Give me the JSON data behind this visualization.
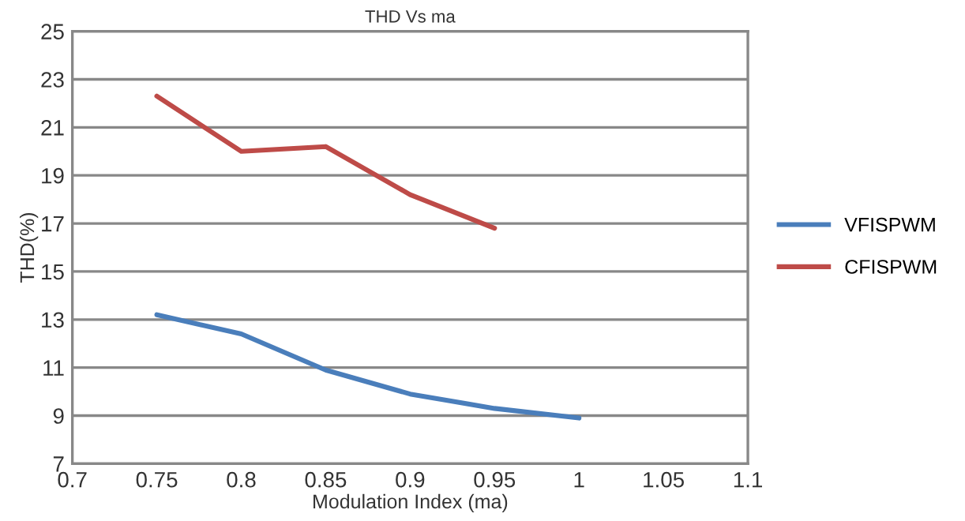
{
  "chart_data": {
    "type": "line",
    "title": "THD Vs ma",
    "xlabel": "Modulation Index (ma)",
    "ylabel": "THD(%)",
    "x": [
      0.75,
      0.8,
      0.85,
      0.9,
      0.95,
      1.0
    ],
    "series": [
      {
        "name": "VFISPWM",
        "color": "#4a7ebb",
        "values": [
          13.2,
          12.4,
          10.9,
          9.9,
          9.3,
          8.9
        ]
      },
      {
        "name": "CFISPWM",
        "color": "#be4b48",
        "values": [
          22.3,
          20.0,
          20.2,
          18.2,
          16.8,
          null
        ]
      }
    ],
    "xlim": [
      0.7,
      1.1
    ],
    "xticks": [
      0.7,
      0.75,
      0.8,
      0.85,
      0.9,
      0.95,
      1,
      1.05,
      1.1
    ],
    "ylim": [
      7,
      25
    ],
    "yticks": [
      7,
      9,
      11,
      13,
      15,
      17,
      19,
      21,
      23,
      25
    ],
    "grid": "y",
    "legend": "right",
    "marker": "none",
    "line_style": "solid"
  }
}
